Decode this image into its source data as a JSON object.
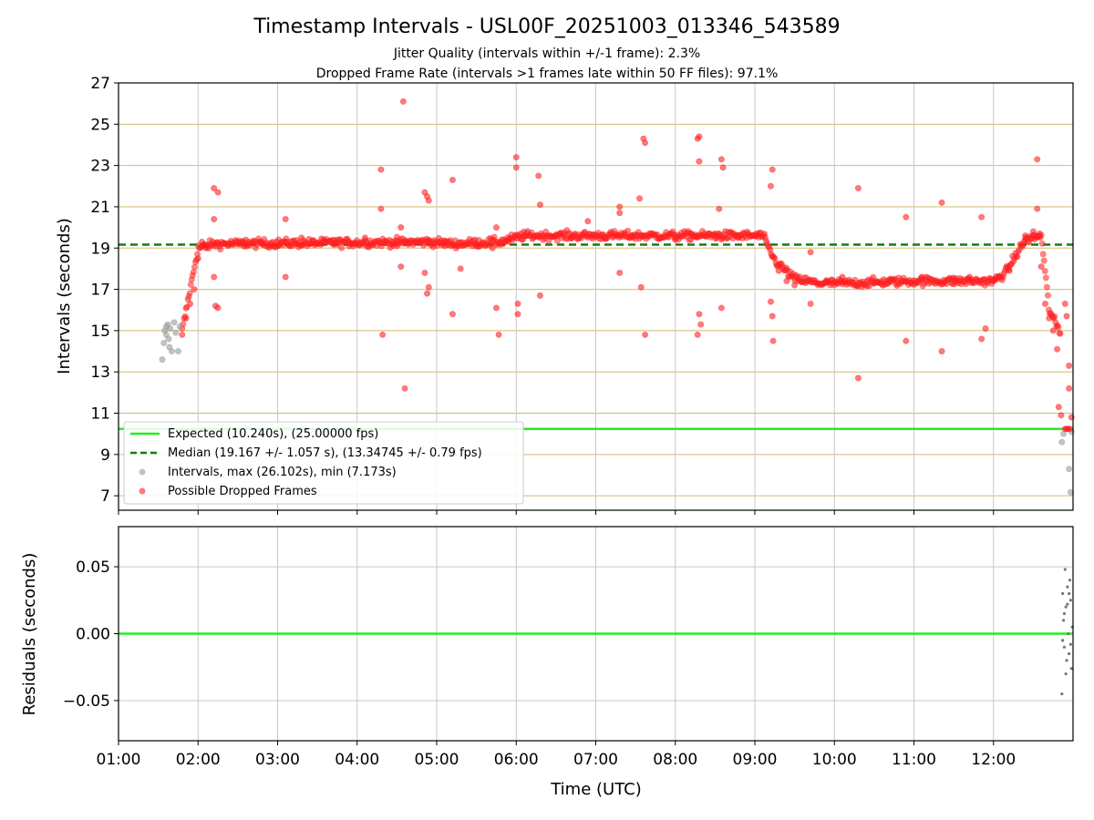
{
  "chart_data": [
    {
      "type": "scatter",
      "title": "Timestamp Intervals - USL00F_20251003_013346_543589",
      "subtitle_lines": [
        "Jitter Quality (intervals within +/-1 frame): 2.3%",
        "Dropped Frame Rate (intervals >1 frames late within 50 FF files): 97.1%"
      ],
      "xlabel": "",
      "ylabel": "Intervals (seconds)",
      "xlim_hours": [
        1.0,
        13.0
      ],
      "ylim": [
        6.3,
        27.0
      ],
      "yticks": [
        7,
        9,
        11,
        13,
        15,
        17,
        19,
        21,
        23,
        25,
        27
      ],
      "ytick_labels": [
        "7",
        "9",
        "11",
        "13",
        "15",
        "17",
        "19",
        "21",
        "23",
        "25",
        "27"
      ],
      "xticks_hours": [
        1,
        2,
        3,
        4,
        5,
        6,
        7,
        8,
        9,
        10,
        11,
        12
      ],
      "grid": true,
      "legend_position": "lower-left",
      "reference_lines": [
        {
          "name": "expected",
          "value": 10.24,
          "color": "#22ee22",
          "style": "solid"
        },
        {
          "name": "median",
          "value": 19.167,
          "color": "#108010",
          "style": "dashed"
        }
      ],
      "legend": [
        {
          "label": "Expected (10.240s), (25.00000 fps)",
          "marker": "line",
          "color": "#22ee22"
        },
        {
          "label": "Median (19.167 +/- 1.057 s), (13.34745 +/- 0.79 fps)",
          "marker": "dashed",
          "color": "#108010"
        },
        {
          "label": "Intervals, max (26.102s), min (7.173s)",
          "marker": "dot",
          "color": "#999999"
        },
        {
          "label": "Possible Dropped Frames",
          "marker": "dot",
          "color": "#ff2020"
        }
      ],
      "series": [
        {
          "name": "Intervals",
          "color": "#999999",
          "points": [
            [
              1.55,
              13.6
            ],
            [
              1.57,
              14.4
            ],
            [
              1.58,
              15.0
            ],
            [
              1.6,
              14.8
            ],
            [
              1.62,
              15.3
            ],
            [
              1.64,
              14.2
            ],
            [
              1.65,
              15.1
            ],
            [
              1.67,
              14.0
            ],
            [
              1.7,
              15.4
            ],
            [
              1.72,
              14.9
            ],
            [
              1.75,
              14.0
            ],
            [
              1.77,
              15.2
            ],
            [
              1.6,
              15.2
            ],
            [
              1.63,
              14.6
            ],
            [
              12.86,
              9.6
            ],
            [
              12.88,
              10.0
            ],
            [
              12.95,
              8.3
            ],
            [
              12.97,
              7.17
            ],
            [
              12.98,
              10.1
            ]
          ]
        },
        {
          "name": "Possible Dropped Frames",
          "color": "#ff2020",
          "points": [
            [
              1.8,
              14.8
            ],
            [
              1.85,
              15.6
            ],
            [
              1.9,
              16.3
            ],
            [
              1.95,
              17.0
            ],
            [
              2.0,
              18.5
            ],
            [
              2.05,
              19.3
            ],
            [
              2.1,
              19.0
            ],
            [
              2.2,
              21.9
            ],
            [
              2.25,
              21.7
            ],
            [
              2.2,
              20.4
            ],
            [
              2.22,
              16.2
            ],
            [
              2.25,
              16.1
            ],
            [
              2.2,
              17.6
            ],
            [
              2.4,
              19.2
            ],
            [
              2.6,
              19.4
            ],
            [
              2.8,
              19.3
            ],
            [
              3.0,
              19.1
            ],
            [
              3.1,
              20.4
            ],
            [
              3.1,
              17.6
            ],
            [
              3.3,
              19.5
            ],
            [
              3.5,
              19.2
            ],
            [
              3.7,
              19.4
            ],
            [
              3.9,
              19.3
            ],
            [
              4.1,
              19.5
            ],
            [
              4.3,
              22.8
            ],
            [
              4.3,
              20.9
            ],
            [
              4.32,
              14.8
            ],
            [
              4.5,
              19.1
            ],
            [
              4.55,
              20.0
            ],
            [
              4.55,
              18.1
            ],
            [
              4.58,
              26.1
            ],
            [
              4.6,
              12.2
            ],
            [
              4.85,
              21.7
            ],
            [
              4.88,
              21.5
            ],
            [
              4.9,
              21.3
            ],
            [
              4.9,
              17.1
            ],
            [
              4.88,
              16.8
            ],
            [
              4.85,
              17.8
            ],
            [
              4.9,
              19.4
            ],
            [
              5.1,
              19.3
            ],
            [
              5.2,
              22.3
            ],
            [
              5.2,
              15.8
            ],
            [
              5.3,
              18.0
            ],
            [
              5.5,
              19.2
            ],
            [
              5.7,
              19.0
            ],
            [
              5.75,
              20.0
            ],
            [
              5.75,
              16.1
            ],
            [
              5.78,
              14.8
            ],
            [
              5.9,
              19.4
            ],
            [
              6.0,
              23.4
            ],
            [
              6.0,
              22.9
            ],
            [
              6.02,
              16.3
            ],
            [
              6.02,
              15.8
            ],
            [
              6.1,
              19.6
            ],
            [
              6.28,
              22.5
            ],
            [
              6.3,
              21.1
            ],
            [
              6.3,
              16.7
            ],
            [
              6.5,
              19.6
            ],
            [
              6.7,
              19.5
            ],
            [
              6.9,
              20.3
            ],
            [
              7.1,
              19.5
            ],
            [
              7.3,
              21.0
            ],
            [
              7.3,
              20.7
            ],
            [
              7.3,
              17.8
            ],
            [
              7.45,
              19.6
            ],
            [
              7.55,
              21.4
            ],
            [
              7.57,
              17.1
            ],
            [
              7.6,
              24.3
            ],
            [
              7.62,
              24.1
            ],
            [
              7.62,
              14.8
            ],
            [
              7.8,
              19.5
            ],
            [
              8.0,
              19.4
            ],
            [
              8.2,
              19.7
            ],
            [
              8.28,
              24.3
            ],
            [
              8.3,
              24.4
            ],
            [
              8.3,
              23.2
            ],
            [
              8.3,
              15.8
            ],
            [
              8.32,
              15.3
            ],
            [
              8.28,
              14.8
            ],
            [
              8.5,
              19.7
            ],
            [
              8.55,
              20.9
            ],
            [
              8.58,
              23.3
            ],
            [
              8.6,
              22.9
            ],
            [
              8.58,
              16.1
            ],
            [
              8.8,
              19.5
            ],
            [
              9.0,
              19.6
            ],
            [
              9.2,
              22.0
            ],
            [
              9.22,
              22.8
            ],
            [
              9.2,
              16.4
            ],
            [
              9.22,
              15.7
            ],
            [
              9.23,
              14.5
            ],
            [
              9.3,
              17.9
            ],
            [
              9.4,
              17.4
            ],
            [
              9.5,
              17.2
            ],
            [
              9.7,
              18.8
            ],
            [
              9.7,
              16.3
            ],
            [
              9.9,
              17.4
            ],
            [
              10.1,
              17.6
            ],
            [
              10.3,
              21.9
            ],
            [
              10.3,
              12.7
            ],
            [
              10.5,
              17.3
            ],
            [
              10.7,
              17.5
            ],
            [
              10.9,
              20.5
            ],
            [
              10.9,
              14.5
            ],
            [
              11.1,
              17.6
            ],
            [
              11.35,
              21.2
            ],
            [
              11.35,
              14.0
            ],
            [
              11.5,
              17.5
            ],
            [
              11.7,
              17.6
            ],
            [
              11.85,
              20.5
            ],
            [
              11.85,
              14.6
            ],
            [
              11.9,
              15.1
            ],
            [
              12.0,
              17.4
            ],
            [
              12.2,
              17.9
            ],
            [
              12.4,
              19.6
            ],
            [
              12.5,
              19.8
            ],
            [
              12.55,
              23.3
            ],
            [
              12.55,
              20.9
            ],
            [
              12.58,
              19.7
            ],
            [
              12.6,
              18.1
            ],
            [
              12.65,
              16.3
            ],
            [
              12.7,
              15.6
            ],
            [
              12.75,
              15.0
            ],
            [
              12.8,
              14.1
            ],
            [
              12.82,
              11.3
            ],
            [
              12.85,
              10.9
            ],
            [
              12.9,
              16.3
            ],
            [
              12.92,
              15.7
            ],
            [
              12.95,
              13.3
            ],
            [
              12.95,
              12.2
            ],
            [
              12.98,
              10.8
            ],
            [
              12.9,
              10.24
            ],
            [
              12.92,
              10.24
            ],
            [
              12.94,
              10.24
            ],
            [
              12.96,
              10.24
            ]
          ]
        }
      ],
      "trend_hours": [
        1.8,
        2.0,
        2.2,
        4.9,
        5.2,
        5.8,
        6.1,
        7.0,
        8.0,
        9.1,
        9.25,
        9.5,
        9.8,
        10.2,
        11.0,
        12.0,
        12.15,
        12.4,
        12.6,
        12.7,
        12.85
      ],
      "trend_values": [
        15.0,
        19.0,
        19.2,
        19.3,
        19.2,
        19.3,
        19.6,
        19.6,
        19.6,
        19.6,
        18.4,
        17.5,
        17.3,
        17.3,
        17.4,
        17.4,
        17.8,
        19.4,
        19.6,
        16.0,
        14.8
      ]
    },
    {
      "type": "scatter",
      "title": "",
      "xlabel": "Time (UTC)",
      "ylabel": "Residuals (seconds)",
      "xlim_hours": [
        1.0,
        13.0
      ],
      "ylim": [
        -0.08,
        0.08
      ],
      "yticks": [
        -0.05,
        0.0,
        0.05
      ],
      "ytick_labels": [
        "−0.05",
        "0.00",
        "0.05"
      ],
      "xticks_hours": [
        1,
        2,
        3,
        4,
        5,
        6,
        7,
        8,
        9,
        10,
        11,
        12
      ],
      "xtick_labels": [
        "01:00",
        "02:00",
        "03:00",
        "04:00",
        "05:00",
        "06:00",
        "07:00",
        "08:00",
        "09:00",
        "10:00",
        "11:00",
        "12:00"
      ],
      "grid": true,
      "reference_lines": [
        {
          "name": "zero",
          "value": 0.0,
          "color": "#22ee22",
          "style": "solid"
        }
      ],
      "series": [
        {
          "name": "Residuals",
          "color": "#777777",
          "points": [
            [
              12.86,
              -0.045
            ],
            [
              12.87,
              0.03
            ],
            [
              12.88,
              0.01
            ],
            [
              12.89,
              -0.01
            ],
            [
              12.9,
              0.048
            ],
            [
              12.91,
              0.02
            ],
            [
              12.92,
              -0.02
            ],
            [
              12.93,
              0.035
            ],
            [
              12.94,
              0.0
            ],
            [
              12.95,
              -0.015
            ],
            [
              12.96,
              0.04
            ],
            [
              12.97,
              0.025
            ],
            [
              12.98,
              -0.026
            ],
            [
              12.99,
              0.005
            ],
            [
              12.87,
              -0.005
            ],
            [
              12.89,
              0.015
            ],
            [
              12.91,
              -0.03
            ],
            [
              12.93,
              0.022
            ],
            [
              12.95,
              0.03
            ],
            [
              12.97,
              -0.008
            ]
          ]
        }
      ]
    }
  ]
}
